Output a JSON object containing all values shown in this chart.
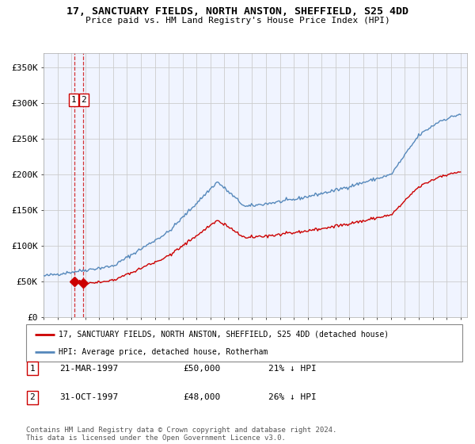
{
  "title": "17, SANCTUARY FIELDS, NORTH ANSTON, SHEFFIELD, S25 4DD",
  "subtitle": "Price paid vs. HM Land Registry's House Price Index (HPI)",
  "hpi_label": "HPI: Average price, detached house, Rotherham",
  "house_label": "17, SANCTUARY FIELDS, NORTH ANSTON, SHEFFIELD, S25 4DD (detached house)",
  "house_color": "#cc0000",
  "hpi_color": "#5588bb",
  "background_color": "#ffffff",
  "plot_bg_color": "#f0f4ff",
  "grid_color": "#cccccc",
  "ylim": [
    0,
    370000
  ],
  "yticks": [
    0,
    50000,
    100000,
    150000,
    200000,
    250000,
    300000,
    350000
  ],
  "ytick_labels": [
    "£0",
    "£50K",
    "£100K",
    "£150K",
    "£200K",
    "£250K",
    "£300K",
    "£350K"
  ],
  "sale1_x": 1997.22,
  "sale1_y": 50000,
  "sale1_label": "1",
  "sale1_date": "21-MAR-1997",
  "sale1_price": "£50,000",
  "sale1_hpi": "21% ↓ HPI",
  "sale2_x": 1997.83,
  "sale2_y": 48000,
  "sale2_label": "2",
  "sale2_date": "31-OCT-1997",
  "sale2_price": "£48,000",
  "sale2_hpi": "26% ↓ HPI",
  "footer": "Contains HM Land Registry data © Crown copyright and database right 2024.\nThis data is licensed under the Open Government Licence v3.0.",
  "xmin": 1995.0,
  "xmax": 2025.5,
  "hpi_seed": 42,
  "house_seed": 10
}
